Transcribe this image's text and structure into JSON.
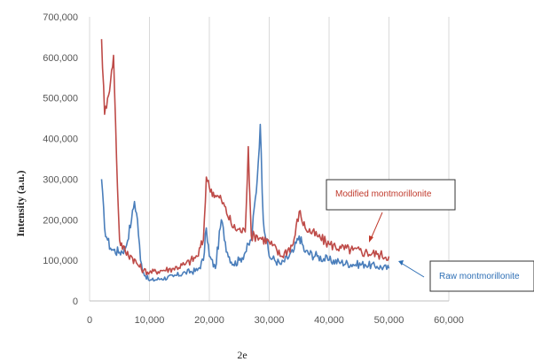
{
  "chart_data": {
    "type": "line",
    "title": "",
    "xlabel": "2e",
    "ylabel": "Intensity (a.u.)",
    "xlim": [
      0,
      60000
    ],
    "ylim": [
      0,
      700000
    ],
    "x_ticks": [
      0,
      10000,
      20000,
      30000,
      40000,
      50000,
      60000
    ],
    "x_tick_labels": [
      "0",
      "10,000",
      "20,000",
      "30,000",
      "40,000",
      "50,000",
      "60,000"
    ],
    "y_ticks": [
      0,
      100000,
      200000,
      300000,
      400000,
      500000,
      600000,
      700000
    ],
    "y_tick_labels": [
      "0",
      "100,000",
      "200,000",
      "300,000",
      "400,000",
      "500,000",
      "600,000",
      "700,000"
    ],
    "grid": "vertical",
    "series": [
      {
        "name": "Raw montmorillonite",
        "color": "#4a7ebb",
        "x": [
          2000,
          2500,
          3000,
          3500,
          4000,
          5000,
          6000,
          7000,
          7500,
          8000,
          8500,
          9000,
          10000,
          12000,
          14000,
          16000,
          18000,
          19000,
          19500,
          20000,
          21000,
          22000,
          23000,
          24000,
          25000,
          26000,
          27000,
          28000,
          28500,
          29000,
          30000,
          32000,
          34000,
          35000,
          36000,
          38000,
          40000,
          42000,
          44000,
          46000,
          48000,
          50000
        ],
        "y": [
          300000,
          180000,
          150000,
          130000,
          125000,
          120000,
          130000,
          200000,
          245000,
          200000,
          100000,
          70000,
          50000,
          55000,
          60000,
          70000,
          75000,
          100000,
          180000,
          110000,
          80000,
          200000,
          120000,
          90000,
          100000,
          120000,
          150000,
          300000,
          435000,
          200000,
          110000,
          90000,
          120000,
          160000,
          120000,
          110000,
          100000,
          95000,
          90000,
          90000,
          85000,
          80000
        ]
      },
      {
        "name": "Modified montmorillonite",
        "color": "#be4b48",
        "x": [
          2000,
          2500,
          3000,
          3500,
          4000,
          4500,
          5000,
          6000,
          7000,
          8000,
          9000,
          10000,
          12000,
          14000,
          16000,
          18000,
          19000,
          19500,
          20000,
          21000,
          22000,
          24000,
          26000,
          26500,
          27000,
          28000,
          30000,
          32000,
          34000,
          35000,
          36000,
          38000,
          40000,
          42000,
          44000,
          46000,
          48000,
          50000
        ],
        "y": [
          645000,
          460000,
          500000,
          540000,
          605000,
          350000,
          150000,
          120000,
          110000,
          90000,
          75000,
          70000,
          75000,
          80000,
          90000,
          110000,
          150000,
          305000,
          280000,
          260000,
          250000,
          180000,
          170000,
          380000,
          160000,
          160000,
          145000,
          110000,
          140000,
          220000,
          180000,
          160000,
          140000,
          130000,
          125000,
          120000,
          115000,
          110000
        ]
      }
    ],
    "annotations": [
      {
        "text": "Modified montmorillonite",
        "color": "#c0392b",
        "series": "Modified montmorillonite"
      },
      {
        "text": "Raw montmorillonite",
        "color": "#2e6fb5",
        "series": "Raw montmorillonite"
      }
    ]
  }
}
